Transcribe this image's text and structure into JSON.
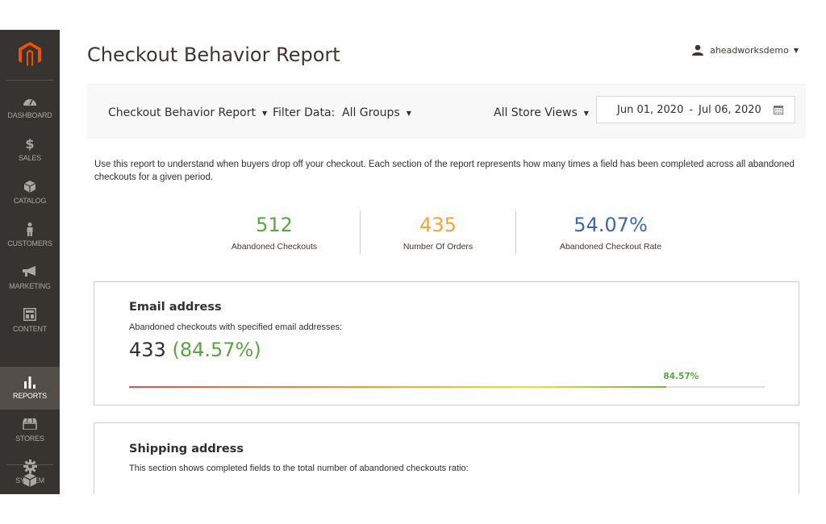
{
  "brand": {
    "logo_icon": "magento-logo-icon",
    "accent": "#eb5202"
  },
  "sidebar": {
    "items": [
      {
        "label": "DASHBOARD",
        "icon": "dashboard-icon"
      },
      {
        "label": "SALES",
        "icon": "dollar-icon"
      },
      {
        "label": "CATALOG",
        "icon": "cube-icon"
      },
      {
        "label": "CUSTOMERS",
        "icon": "person-icon"
      },
      {
        "label": "MARKETING",
        "icon": "megaphone-icon"
      },
      {
        "label": "CONTENT",
        "icon": "layout-icon"
      },
      {
        "label": "REPORTS",
        "icon": "bar-chart-icon",
        "active": true
      },
      {
        "label": "STORES",
        "icon": "storefront-icon"
      },
      {
        "label": "SYSTEM",
        "icon": "gear-icon"
      }
    ],
    "extra_icon": "extensions-icon"
  },
  "header": {
    "title": "Checkout Behavior Report",
    "user": "aheadworksdemo"
  },
  "filters": {
    "report_select": "Checkout Behavior Report",
    "filter_label": "Filter Data:",
    "group_select": "All Groups",
    "store_select": "All Store Views",
    "date_from": "Jun 01, 2020",
    "date_sep": "-",
    "date_to": "Jul 06, 2020"
  },
  "description": "Use this report to understand when buyers drop off your checkout. Each section of the report represents how many times a field has been completed across all abandoned checkouts for a given period.",
  "stats": [
    {
      "value": "512",
      "caption": "Abandoned Checkouts",
      "color": "#5aa541"
    },
    {
      "value": "435",
      "caption": "Number Of Orders",
      "color": "#f3a43e"
    },
    {
      "value": "54.07%",
      "caption": "Abandoned Checkout Rate",
      "color": "#3c6aa8"
    }
  ],
  "email_section": {
    "title": "Email address",
    "subtitle": "Abandoned checkouts with specified email addresses:",
    "count": "433",
    "percent_text": "(84.57%)",
    "bar_label": "84.57%",
    "fill_fraction": 0.8457
  },
  "shipping_section": {
    "title": "Shipping address",
    "subtitle": "This section shows completed fields to the total number of abandoned checkouts ratio:"
  }
}
